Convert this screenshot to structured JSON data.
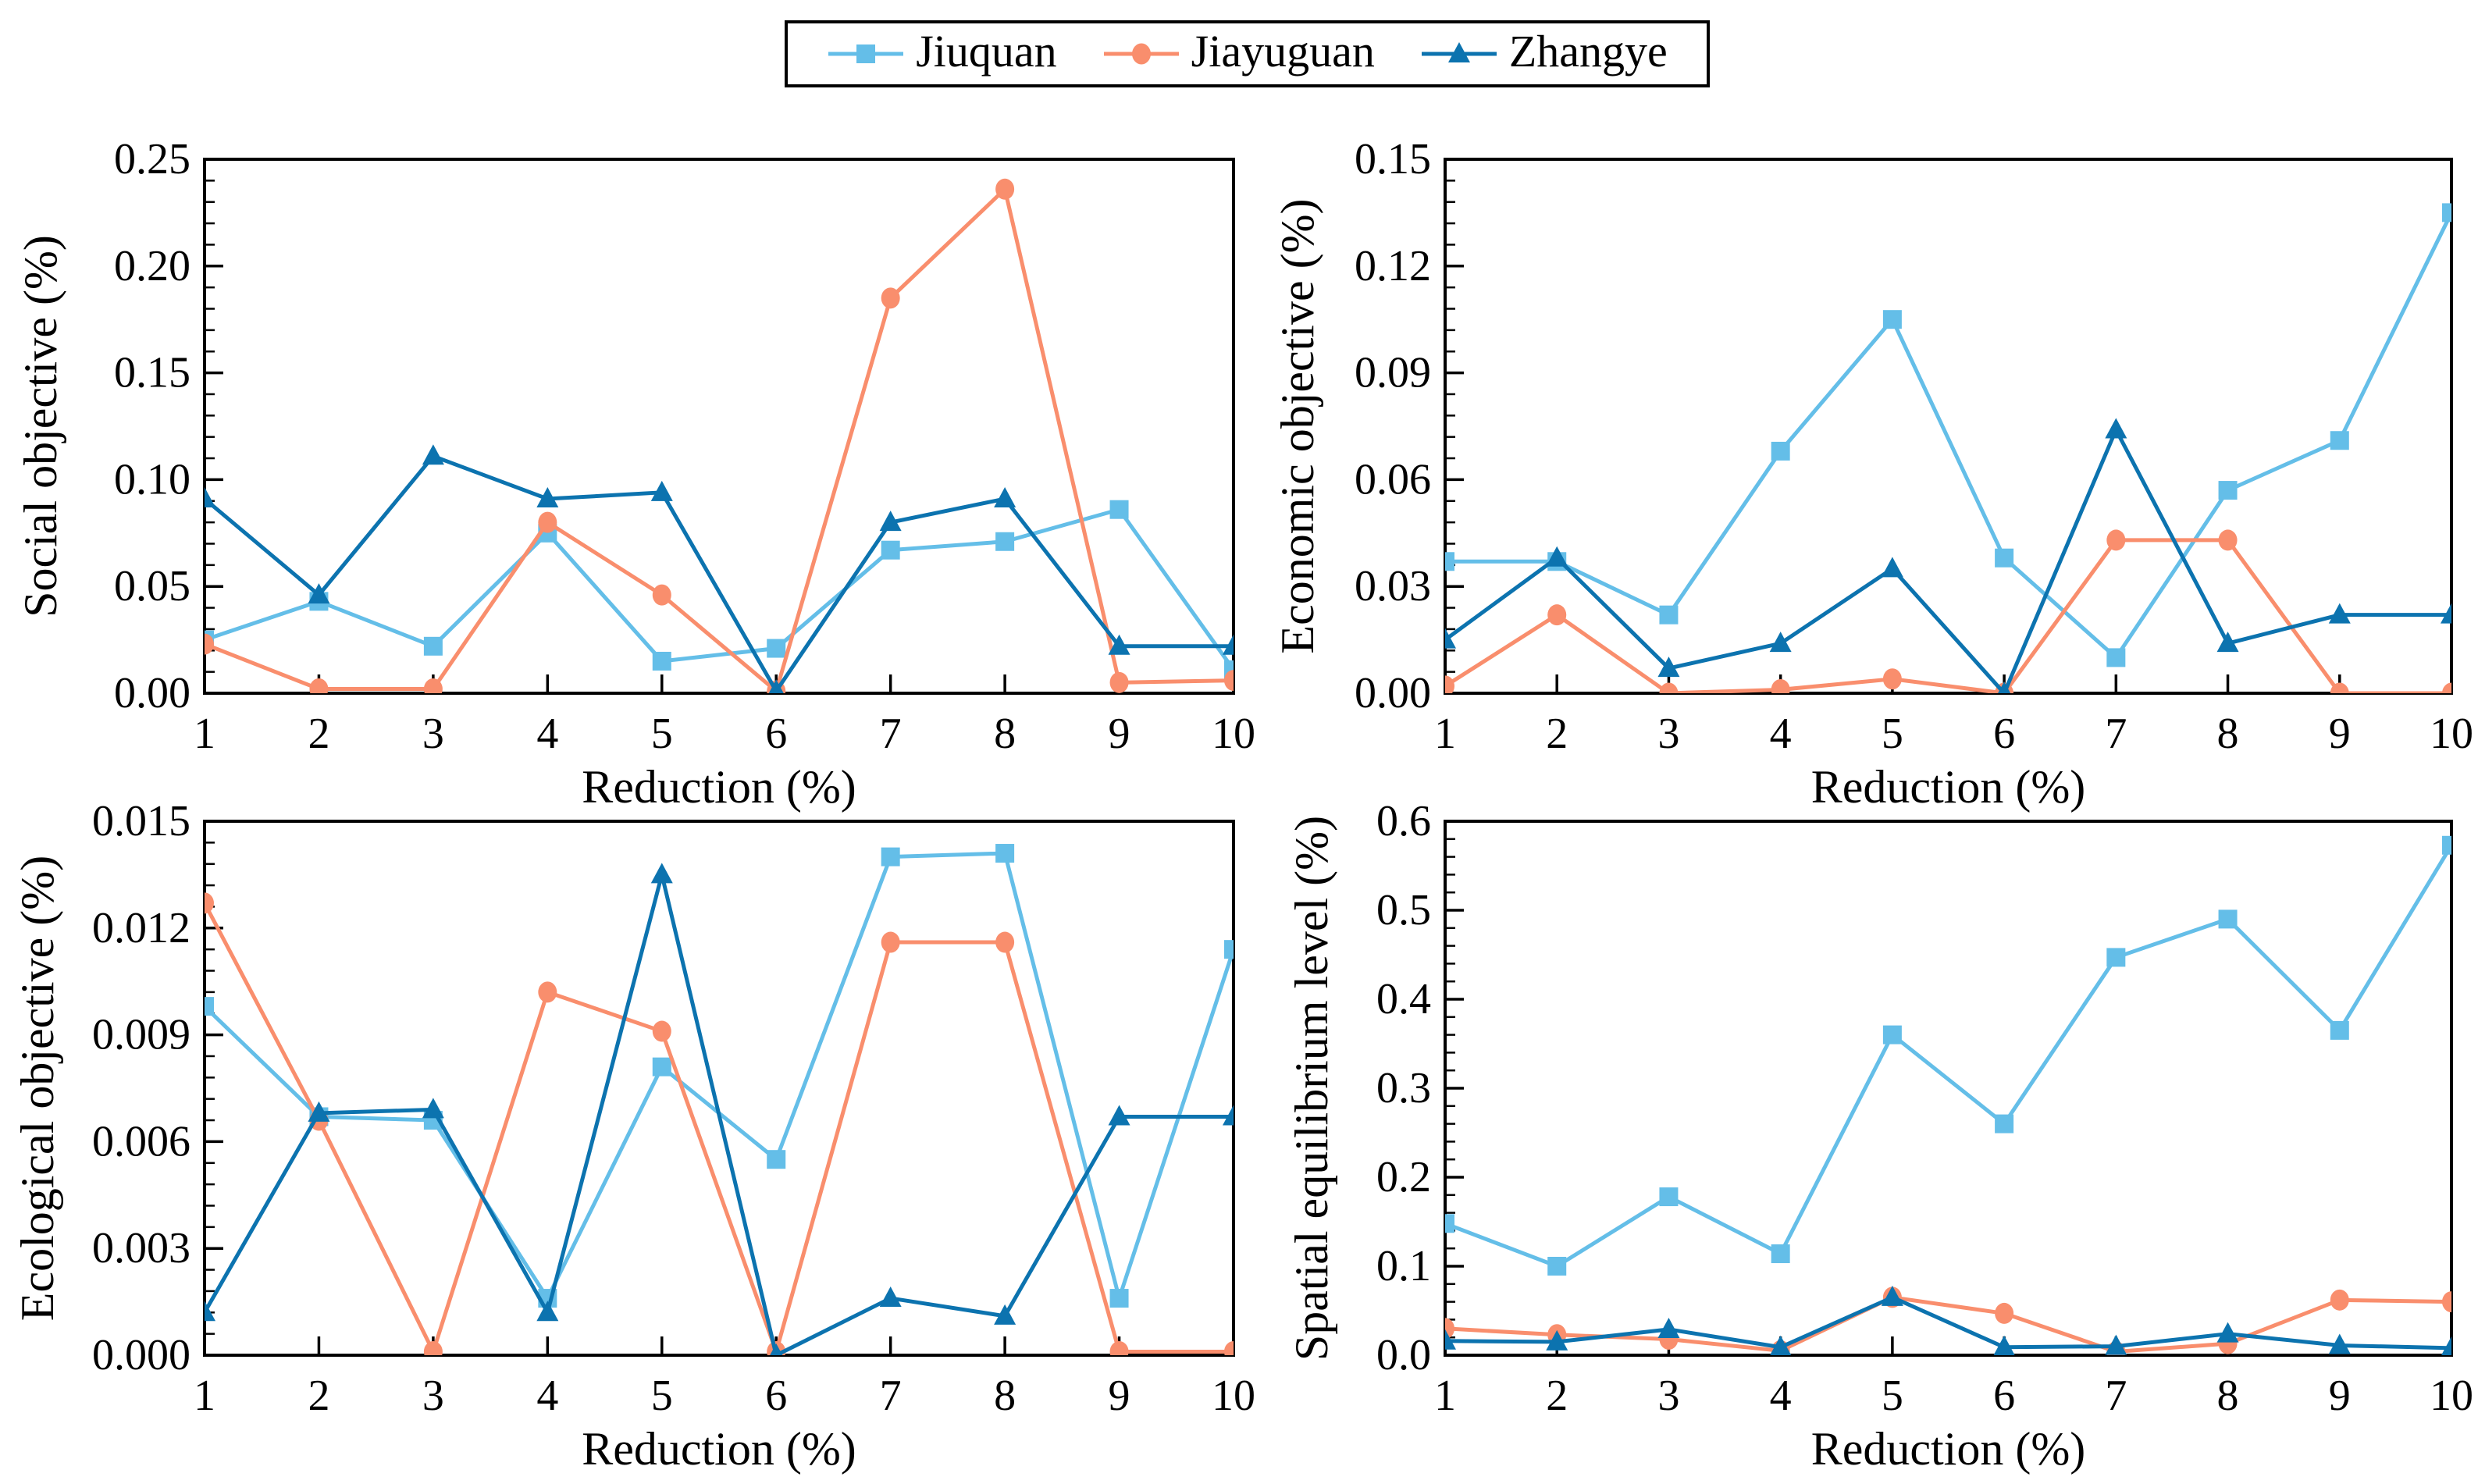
{
  "legend": {
    "items": [
      {
        "label": "Jiuquan",
        "color": "#64BEE8",
        "marker": "square",
        "icon": "square-marker-icon"
      },
      {
        "label": "Jiayuguan",
        "color": "#F98E6D",
        "marker": "circle",
        "icon": "circle-marker-icon"
      },
      {
        "label": "Zhangye",
        "color": "#0C73AF",
        "marker": "triangle",
        "icon": "triangle-marker-icon"
      }
    ]
  },
  "chart_data": [
    {
      "type": "line",
      "title": "",
      "xlabel": "Reduction (%)",
      "ylabel": "Social objective (%)",
      "x": [
        1,
        2,
        3,
        4,
        5,
        6,
        7,
        8,
        9,
        10
      ],
      "ylim": [
        0,
        0.25
      ],
      "yticks": [
        "0.00",
        "0.05",
        "0.10",
        "0.15",
        "0.20",
        "0.25"
      ],
      "grid": false,
      "legend_position": "top-outside",
      "series": [
        {
          "name": "Jiuquan",
          "color": "#64BEE8",
          "marker": "square",
          "values": [
            0.025,
            0.043,
            0.022,
            0.075,
            0.015,
            0.021,
            0.067,
            0.071,
            0.086,
            0.011
          ]
        },
        {
          "name": "Jiayuguan",
          "color": "#F98E6D",
          "marker": "circle",
          "values": [
            0.023,
            0.002,
            0.002,
            0.08,
            0.046,
            0.001,
            0.185,
            0.236,
            0.005,
            0.006
          ]
        },
        {
          "name": "Zhangye",
          "color": "#0C73AF",
          "marker": "triangle",
          "values": [
            0.091,
            0.046,
            0.111,
            0.091,
            0.094,
            0.001,
            0.08,
            0.091,
            0.022,
            0.022
          ]
        }
      ]
    },
    {
      "type": "line",
      "title": "",
      "xlabel": "Reduction (%)",
      "ylabel": "Economic objective (%)",
      "x": [
        1,
        2,
        3,
        4,
        5,
        6,
        7,
        8,
        9,
        10
      ],
      "ylim": [
        0,
        0.15
      ],
      "yticks": [
        "0.00",
        "0.03",
        "0.06",
        "0.09",
        "0.12",
        "0.15"
      ],
      "grid": false,
      "legend_position": "top-outside",
      "series": [
        {
          "name": "Jiuquan",
          "color": "#64BEE8",
          "marker": "square",
          "values": [
            0.037,
            0.037,
            0.022,
            0.068,
            0.105,
            0.038,
            0.01,
            0.057,
            0.071,
            0.135
          ]
        },
        {
          "name": "Jiayuguan",
          "color": "#F98E6D",
          "marker": "circle",
          "values": [
            0.002,
            0.022,
            0.0,
            0.001,
            0.004,
            0.0,
            0.043,
            0.043,
            0.0,
            0.0
          ]
        },
        {
          "name": "Zhangye",
          "color": "#0C73AF",
          "marker": "triangle",
          "values": [
            0.015,
            0.038,
            0.007,
            0.014,
            0.035,
            0.0,
            0.074,
            0.014,
            0.022,
            0.022
          ]
        }
      ]
    },
    {
      "type": "line",
      "title": "",
      "xlabel": "Reduction (%)",
      "ylabel": "Ecological objective (%)",
      "x": [
        1,
        2,
        3,
        4,
        5,
        6,
        7,
        8,
        9,
        10
      ],
      "ylim": [
        0,
        0.015
      ],
      "yticks": [
        "0.000",
        "0.003",
        "0.006",
        "0.009",
        "0.012",
        "0.015"
      ],
      "grid": false,
      "legend_position": "top-outside",
      "series": [
        {
          "name": "Jiuquan",
          "color": "#64BEE8",
          "marker": "square",
          "values": [
            0.0098,
            0.0067,
            0.0066,
            0.0016,
            0.0081,
            0.0055,
            0.014,
            0.0141,
            0.0016,
            0.0114
          ]
        },
        {
          "name": "Jiayuguan",
          "color": "#F98E6D",
          "marker": "circle",
          "values": [
            0.0127,
            0.0066,
            0.0001,
            0.0102,
            0.0091,
            0.0001,
            0.0116,
            0.0116,
            0.0001,
            0.0001
          ]
        },
        {
          "name": "Zhangye",
          "color": "#0C73AF",
          "marker": "triangle",
          "values": [
            0.0012,
            0.0068,
            0.0069,
            0.0012,
            0.0135,
            0.0,
            0.0016,
            0.0011,
            0.0067,
            0.0067
          ]
        }
      ]
    },
    {
      "type": "line",
      "title": "",
      "xlabel": "Reduction (%)",
      "ylabel": "Spatial equilibrium level (%)",
      "x": [
        1,
        2,
        3,
        4,
        5,
        6,
        7,
        8,
        9,
        10
      ],
      "ylim": [
        0,
        0.6
      ],
      "yticks": [
        "0.0",
        "0.1",
        "0.2",
        "0.3",
        "0.4",
        "0.5",
        "0.6"
      ],
      "grid": false,
      "legend_position": "top-outside",
      "series": [
        {
          "name": "Jiuquan",
          "color": "#64BEE8",
          "marker": "square",
          "values": [
            0.148,
            0.1,
            0.178,
            0.114,
            0.36,
            0.26,
            0.447,
            0.49,
            0.365,
            0.573
          ]
        },
        {
          "name": "Jiayuguan",
          "color": "#F98E6D",
          "marker": "circle",
          "values": [
            0.03,
            0.023,
            0.018,
            0.005,
            0.065,
            0.047,
            0.004,
            0.013,
            0.062,
            0.06
          ]
        },
        {
          "name": "Zhangye",
          "color": "#0C73AF",
          "marker": "triangle",
          "values": [
            0.016,
            0.015,
            0.029,
            0.009,
            0.065,
            0.009,
            0.01,
            0.024,
            0.011,
            0.008
          ]
        }
      ]
    }
  ]
}
